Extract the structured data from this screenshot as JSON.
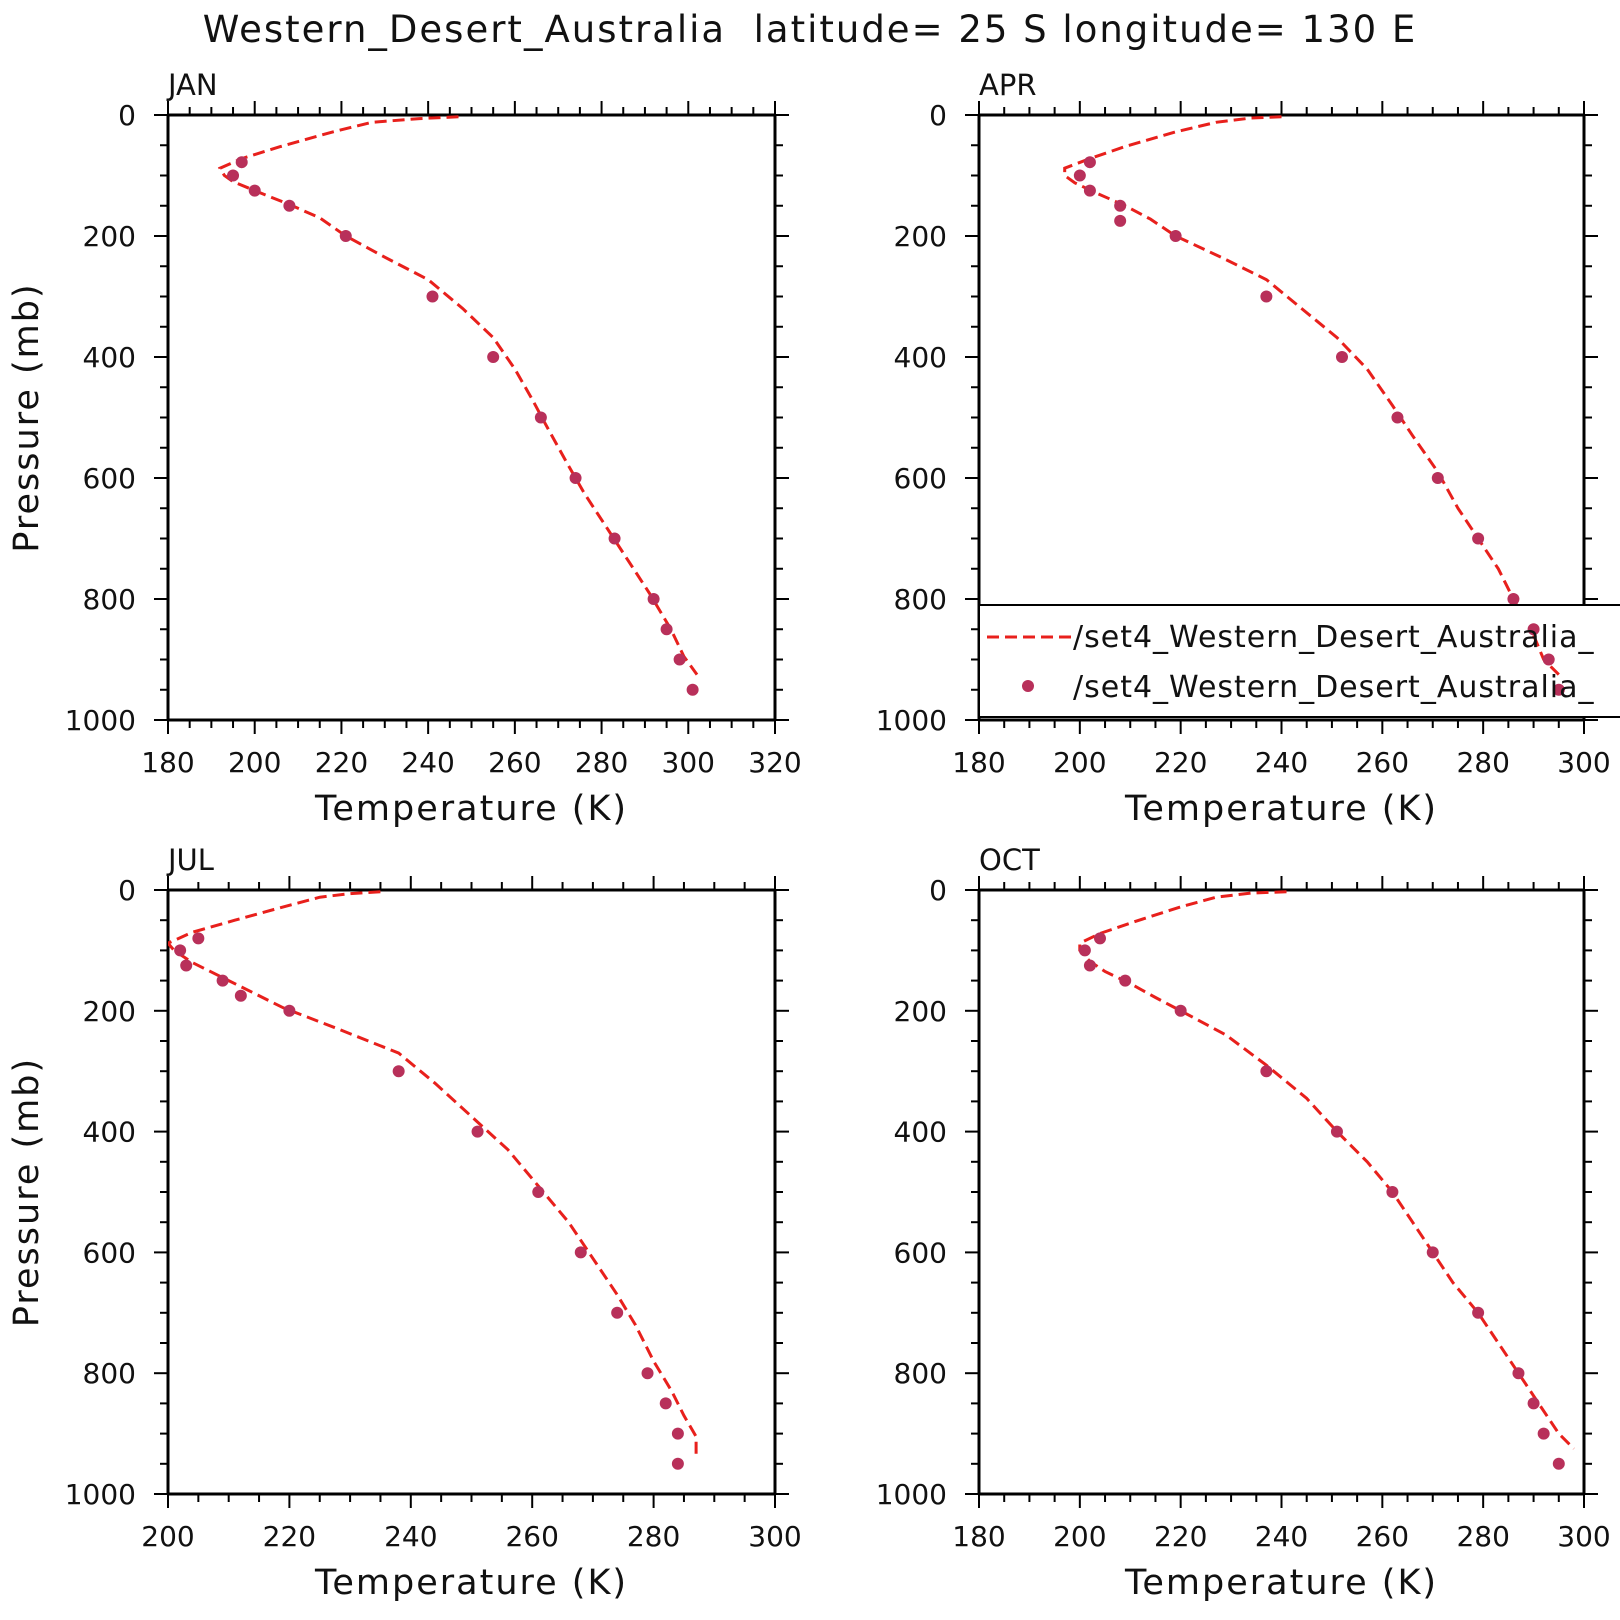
{
  "title": "Western_Desert_Australia  latitude= 25 S longitude= 130 E",
  "colors": {
    "model_line": "#e8201c",
    "obs_points": "#b8305a",
    "axis": "#000000"
  },
  "legend": {
    "entries": [
      {
        "marker": "dashed-line",
        "label": "/set4_Western_Desert_Australia_"
      },
      {
        "marker": "dot",
        "label": "/set4_Western_Desert_Australia_"
      }
    ]
  },
  "chart_data": [
    {
      "type": "line",
      "panel": "JAN",
      "title": "JAN",
      "xlabel": "Temperature (K)",
      "ylabel": "Pressure (mb)",
      "xlim": [
        180,
        320
      ],
      "ylim": [
        1000,
        0
      ],
      "y_inverted": true,
      "xticks": [
        180,
        200,
        220,
        240,
        260,
        280,
        300,
        320
      ],
      "yticks": [
        0,
        200,
        400,
        600,
        800,
        1000
      ],
      "series": [
        {
          "style": "dashed-line",
          "points": [
            [
              247,
              3
            ],
            [
              238,
              6
            ],
            [
              227,
              12
            ],
            [
              218,
              28
            ],
            [
              206,
              52
            ],
            [
              197,
              72
            ],
            [
              192,
              88
            ],
            [
              193,
              100
            ],
            [
              195,
              110
            ],
            [
              201,
              128
            ],
            [
              208,
              148
            ],
            [
              215,
              170
            ],
            [
              221,
              200
            ],
            [
              230,
              235
            ],
            [
              240,
              272
            ],
            [
              248,
              320
            ],
            [
              255,
              368
            ],
            [
              260,
              420
            ],
            [
              264,
              470
            ],
            [
              267,
              510
            ],
            [
              272,
              575
            ],
            [
              276,
              625
            ],
            [
              281,
              680
            ],
            [
              286,
              735
            ],
            [
              291,
              790
            ],
            [
              296,
              850
            ],
            [
              299,
              895
            ],
            [
              302,
              925
            ]
          ]
        },
        {
          "style": "dots",
          "points": [
            [
              197,
              78
            ],
            [
              195,
              100
            ],
            [
              200,
              125
            ],
            [
              208,
              150
            ],
            [
              221,
              200
            ],
            [
              241,
              300
            ],
            [
              255,
              400
            ],
            [
              266,
              500
            ],
            [
              274,
              600
            ],
            [
              283,
              700
            ],
            [
              292,
              800
            ],
            [
              295,
              850
            ],
            [
              298,
              900
            ],
            [
              301,
              950
            ]
          ]
        }
      ]
    },
    {
      "type": "line",
      "panel": "APR",
      "title": "APR",
      "xlabel": "Temperature (K)",
      "ylabel": "",
      "xlim": [
        180,
        300
      ],
      "ylim": [
        1000,
        0
      ],
      "y_inverted": true,
      "xticks": [
        180,
        200,
        220,
        240,
        260,
        280,
        300
      ],
      "yticks": [
        0,
        200,
        400,
        600,
        800,
        1000
      ],
      "series": [
        {
          "style": "dashed-line",
          "points": [
            [
              240,
              3
            ],
            [
              234,
              5
            ],
            [
              227,
              12
            ],
            [
              219,
              28
            ],
            [
              209,
              52
            ],
            [
              202,
              72
            ],
            [
              197,
              88
            ],
            [
              197,
              100
            ],
            [
              199,
              112
            ],
            [
              203,
              128
            ],
            [
              209,
              150
            ],
            [
              214,
              172
            ],
            [
              219,
              200
            ],
            [
              228,
              235
            ],
            [
              237,
              272
            ],
            [
              244,
              320
            ],
            [
              251,
              368
            ],
            [
              257,
              420
            ],
            [
              262,
              480
            ],
            [
              266,
              530
            ],
            [
              271,
              590
            ],
            [
              275,
              650
            ],
            [
              279,
              700
            ],
            [
              283,
              750
            ],
            [
              286,
              800
            ],
            [
              290,
              860
            ],
            [
              292,
              900
            ],
            [
              295,
              925
            ]
          ]
        },
        {
          "style": "dots",
          "points": [
            [
              202,
              78
            ],
            [
              200,
              100
            ],
            [
              202,
              125
            ],
            [
              208,
              150
            ],
            [
              208,
              175
            ],
            [
              219,
              200
            ],
            [
              237,
              300
            ],
            [
              252,
              400
            ],
            [
              263,
              500
            ],
            [
              271,
              600
            ],
            [
              279,
              700
            ],
            [
              286,
              800
            ],
            [
              290,
              850
            ],
            [
              293,
              900
            ],
            [
              295,
              950
            ]
          ]
        }
      ]
    },
    {
      "type": "line",
      "panel": "JUL",
      "title": "JUL",
      "xlabel": "Temperature (K)",
      "ylabel": "Pressure (mb)",
      "xlim": [
        200,
        300
      ],
      "ylim": [
        1000,
        0
      ],
      "y_inverted": true,
      "xticks": [
        200,
        220,
        240,
        260,
        280,
        300
      ],
      "yticks": [
        0,
        200,
        400,
        600,
        800,
        1000
      ],
      "series": [
        {
          "style": "dashed-line",
          "points": [
            [
              235,
              3
            ],
            [
              230,
              6
            ],
            [
              225,
              12
            ],
            [
              219,
              28
            ],
            [
              211,
              50
            ],
            [
              204,
              70
            ],
            [
              200,
              88
            ],
            [
              201,
              100
            ],
            [
              204,
              120
            ],
            [
              209,
              145
            ],
            [
              214,
              170
            ],
            [
              219,
              195
            ],
            [
              228,
              230
            ],
            [
              238,
              270
            ],
            [
              244,
              320
            ],
            [
              250,
              375
            ],
            [
              256,
              430
            ],
            [
              261,
              490
            ],
            [
              266,
              550
            ],
            [
              270,
              610
            ],
            [
              274,
              670
            ],
            [
              277,
              720
            ],
            [
              280,
              780
            ],
            [
              283,
              830
            ],
            [
              285,
              870
            ],
            [
              287,
              905
            ],
            [
              287,
              935
            ]
          ]
        },
        {
          "style": "dots",
          "points": [
            [
              205,
              80
            ],
            [
              202,
              100
            ],
            [
              203,
              125
            ],
            [
              209,
              150
            ],
            [
              212,
              175
            ],
            [
              220,
              200
            ],
            [
              238,
              300
            ],
            [
              251,
              400
            ],
            [
              261,
              500
            ],
            [
              268,
              600
            ],
            [
              274,
              700
            ],
            [
              279,
              800
            ],
            [
              282,
              850
            ],
            [
              284,
              900
            ],
            [
              284,
              950
            ]
          ]
        }
      ]
    },
    {
      "type": "line",
      "panel": "OCT",
      "title": "OCT",
      "xlabel": "Temperature (K)",
      "ylabel": "",
      "xlim": [
        180,
        300
      ],
      "ylim": [
        1000,
        0
      ],
      "y_inverted": true,
      "xticks": [
        180,
        200,
        220,
        240,
        260,
        280,
        300
      ],
      "yticks": [
        0,
        200,
        400,
        600,
        800,
        1000
      ],
      "series": [
        {
          "style": "dashed-line",
          "points": [
            [
              241,
              3
            ],
            [
              234,
              5
            ],
            [
              227,
              12
            ],
            [
              220,
              28
            ],
            [
              211,
              52
            ],
            [
              204,
              72
            ],
            [
              200,
              88
            ],
            [
              200,
              100
            ],
            [
              202,
              118
            ],
            [
              205,
              135
            ],
            [
              210,
              155
            ],
            [
              215,
              178
            ],
            [
              220,
              200
            ],
            [
              229,
              240
            ],
            [
              237,
              290
            ],
            [
              245,
              345
            ],
            [
              251,
              400
            ],
            [
              257,
              450
            ],
            [
              262,
              500
            ],
            [
              266,
              550
            ],
            [
              270,
              600
            ],
            [
              274,
              650
            ],
            [
              279,
              700
            ],
            [
              283,
              750
            ],
            [
              287,
              800
            ],
            [
              291,
              850
            ],
            [
              295,
              900
            ],
            [
              298,
              925
            ]
          ]
        },
        {
          "style": "dots",
          "points": [
            [
              204,
              80
            ],
            [
              201,
              100
            ],
            [
              202,
              125
            ],
            [
              209,
              150
            ],
            [
              220,
              200
            ],
            [
              237,
              300
            ],
            [
              251,
              400
            ],
            [
              262,
              500
            ],
            [
              270,
              600
            ],
            [
              279,
              700
            ],
            [
              287,
              800
            ],
            [
              290,
              850
            ],
            [
              292,
              900
            ],
            [
              295,
              950
            ]
          ]
        }
      ]
    }
  ]
}
